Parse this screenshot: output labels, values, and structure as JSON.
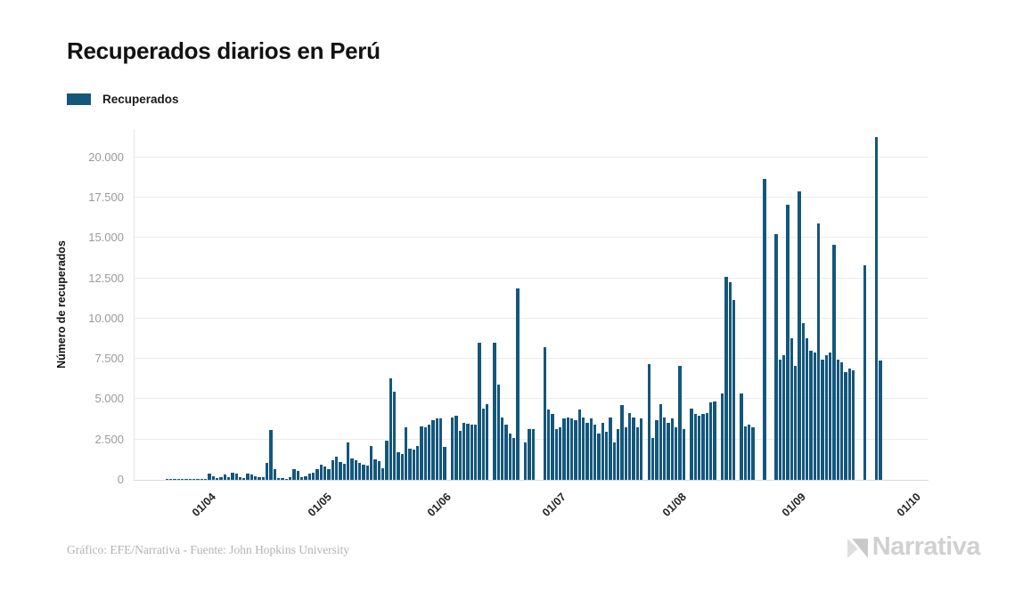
{
  "header": {
    "title": "Recuperados diarios en Perú"
  },
  "legend": {
    "label": "Recuperados",
    "swatch_color": "#14577d"
  },
  "footer": {
    "credit": "Gráfico: EFE/Narrativa - Fuente: John Hopkins University",
    "logo_text": "Narrativa"
  },
  "colors": {
    "bar": "#14577d",
    "grid": "#ececec",
    "axis": "#d9d9d9",
    "y_tick_label": "#9a9a9a",
    "x_tick_label": "#222222",
    "title": "#121212",
    "credit_text": "#b3b3b3",
    "logo": "#d0d0d0"
  },
  "chart_data": {
    "type": "bar",
    "title": "Recuperados diarios en Perú",
    "xlabel": "",
    "ylabel": "Número de recuperados",
    "grid": "horizontal",
    "legend_position": "top-left",
    "ylim": [
      0,
      21750
    ],
    "x_start": "22/03",
    "x_end": "30/09",
    "x_unit": "day",
    "domain_days": 206,
    "bars_start_day": 8,
    "y_ticks": [
      {
        "value": 0,
        "label": "0"
      },
      {
        "value": 2500,
        "label": "2.500"
      },
      {
        "value": 5000,
        "label": "5.000"
      },
      {
        "value": 7500,
        "label": "7.500"
      },
      {
        "value": 10000,
        "label": "10.000"
      },
      {
        "value": 12500,
        "label": "12.500"
      },
      {
        "value": 15000,
        "label": "15.000"
      },
      {
        "value": 17500,
        "label": "17.500"
      },
      {
        "value": 20000,
        "label": "20.000"
      }
    ],
    "x_ticks": [
      {
        "label": "01/04",
        "day": 18
      },
      {
        "label": "01/05",
        "day": 48
      },
      {
        "label": "01/06",
        "day": 79
      },
      {
        "label": "01/07",
        "day": 109
      },
      {
        "label": "01/08",
        "day": 140
      },
      {
        "label": "01/09",
        "day": 171
      },
      {
        "label": "01/10",
        "day": 201
      }
    ],
    "series": [
      {
        "name": "Recuperados",
        "color": "#14577d",
        "values": [
          30,
          40,
          50,
          40,
          60,
          50,
          70,
          60,
          80,
          70,
          70,
          370,
          240,
          90,
          150,
          330,
          180,
          460,
          400,
          150,
          90,
          370,
          330,
          220,
          180,
          150,
          1050,
          3100,
          650,
          110,
          130,
          40,
          150,
          640,
          550,
          150,
          220,
          400,
          460,
          640,
          920,
          830,
          640,
          1200,
          1440,
          1100,
          1010,
          2300,
          1300,
          1200,
          1030,
          940,
          870,
          2100,
          1260,
          1180,
          720,
          2450,
          6300,
          5450,
          1700,
          1600,
          3240,
          1950,
          1900,
          2100,
          3300,
          3250,
          3400,
          3700,
          3800,
          3800,
          2040,
          0,
          3890,
          3980,
          3060,
          3520,
          3470,
          3400,
          3400,
          8480,
          4440,
          4710,
          0,
          8480,
          5910,
          3890,
          3420,
          2870,
          2590,
          11850,
          0,
          2320,
          3150,
          3150,
          0,
          0,
          8250,
          4340,
          4070,
          3150,
          3250,
          3790,
          3890,
          3790,
          3700,
          4340,
          3890,
          3520,
          3790,
          3430,
          2870,
          3520,
          2960,
          3890,
          2320,
          3150,
          4620,
          3250,
          4120,
          3890,
          3250,
          3790,
          0,
          7200,
          2590,
          3700,
          4700,
          3890,
          3520,
          3790,
          3250,
          7050,
          3150,
          0,
          4440,
          4070,
          3980,
          4070,
          4160,
          4800,
          4860,
          0,
          5350,
          12570,
          12260,
          11150,
          0,
          5350,
          3330,
          3450,
          3280,
          0,
          0,
          18660,
          0,
          0,
          15250,
          7470,
          7750,
          17040,
          8800,
          7070,
          17870,
          9730,
          8800,
          7990,
          7880,
          15900,
          7470,
          7750,
          7880,
          14560,
          7470,
          7290,
          6700,
          6880,
          6770,
          0,
          0,
          13320,
          0,
          0,
          21270,
          7380,
          0,
          0,
          0,
          0,
          0,
          0,
          0
        ]
      }
    ]
  }
}
